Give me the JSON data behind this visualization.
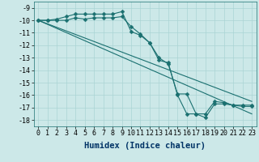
{
  "xlabel": "Humidex (Indice chaleur)",
  "background_color": "#cce8e8",
  "line_color": "#1a7070",
  "xlim": [
    -0.5,
    23.5
  ],
  "ylim": [
    -18.5,
    -8.5
  ],
  "xticks": [
    0,
    1,
    2,
    3,
    4,
    5,
    6,
    7,
    8,
    9,
    10,
    11,
    12,
    13,
    14,
    15,
    16,
    17,
    18,
    19,
    20,
    21,
    22,
    23
  ],
  "yticks": [
    -9,
    -10,
    -11,
    -12,
    -13,
    -14,
    -15,
    -16,
    -17,
    -18
  ],
  "lines": [
    {
      "x": [
        0,
        1,
        2,
        3,
        4,
        5,
        6,
        7,
        8,
        9,
        10,
        11,
        12,
        13,
        14,
        15,
        16,
        17,
        18,
        19,
        20,
        21,
        22,
        23
      ],
      "y": [
        -10,
        -10,
        -9.9,
        -9.7,
        -9.5,
        -9.5,
        -9.5,
        -9.5,
        -9.5,
        -9.3,
        -10.9,
        -11.2,
        -11.8,
        -13.2,
        -13.4,
        -16.0,
        -17.5,
        -17.5,
        -17.8,
        -16.7,
        -16.7,
        -16.8,
        -16.8,
        -16.8
      ],
      "has_marker": true,
      "markersize": 2.5
    },
    {
      "x": [
        0,
        1,
        2,
        3,
        4,
        5,
        6,
        7,
        8,
        9,
        10,
        11,
        12,
        13,
        14,
        15,
        16,
        17,
        18,
        19,
        20,
        21,
        22,
        23
      ],
      "y": [
        -10,
        -10,
        -10,
        -10,
        -9.8,
        -9.9,
        -9.8,
        -9.8,
        -9.8,
        -9.7,
        -10.5,
        -11.1,
        -11.8,
        -13.0,
        -13.5,
        -15.9,
        -15.9,
        -17.5,
        -17.5,
        -16.5,
        -16.6,
        -16.8,
        -16.9,
        -16.9
      ],
      "has_marker": true,
      "markersize": 2.5
    },
    {
      "x": [
        0,
        23
      ],
      "y": [
        -10,
        -17.5
      ],
      "has_marker": false,
      "markersize": 0
    },
    {
      "x": [
        0,
        23
      ],
      "y": [
        -10,
        -16.5
      ],
      "has_marker": false,
      "markersize": 0
    }
  ],
  "grid_color": "#aad4d4",
  "tick_fontsize": 6,
  "xlabel_fontsize": 7.5
}
